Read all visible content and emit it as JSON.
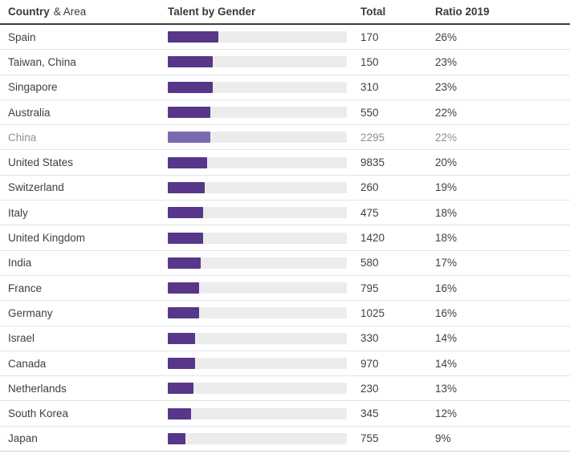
{
  "colors": {
    "bar_fill": "#563789",
    "bar_fill_highlight": "#7a69ae",
    "bar_track": "#ececec",
    "text": "#3f3f3f",
    "text_muted": "#8f8f8f",
    "header_rule": "#3c3c3c",
    "row_rule": "#e4e4e4"
  },
  "header": {
    "country_bold": "Country",
    "country_regular": "& Area",
    "talent": "Talent by Gender",
    "total": "Total",
    "ratio": "Ratio 2019"
  },
  "rows": [
    {
      "country": "Spain",
      "total": "170",
      "ratio": "26%",
      "ratio_value": 26,
      "muted": false
    },
    {
      "country": "Taiwan, China",
      "total": "150",
      "ratio": "23%",
      "ratio_value": 23,
      "muted": false
    },
    {
      "country": "Singapore",
      "total": "310",
      "ratio": "23%",
      "ratio_value": 23,
      "muted": false
    },
    {
      "country": "Australia",
      "total": "550",
      "ratio": "22%",
      "ratio_value": 22,
      "muted": false
    },
    {
      "country": "China",
      "total": "2295",
      "ratio": "22%",
      "ratio_value": 22,
      "muted": true
    },
    {
      "country": "United States",
      "total": "9835",
      "ratio": "20%",
      "ratio_value": 20,
      "muted": false
    },
    {
      "country": "Switzerland",
      "total": "260",
      "ratio": "19%",
      "ratio_value": 19,
      "muted": false
    },
    {
      "country": "Italy",
      "total": "475",
      "ratio": "18%",
      "ratio_value": 18,
      "muted": false
    },
    {
      "country": "United Kingdom",
      "total": "1420",
      "ratio": "18%",
      "ratio_value": 18,
      "muted": false
    },
    {
      "country": "India",
      "total": "580",
      "ratio": "17%",
      "ratio_value": 17,
      "muted": false
    },
    {
      "country": "France",
      "total": "795",
      "ratio": "16%",
      "ratio_value": 16,
      "muted": false
    },
    {
      "country": "Germany",
      "total": "1025",
      "ratio": "16%",
      "ratio_value": 16,
      "muted": false
    },
    {
      "country": "Israel",
      "total": "330",
      "ratio": "14%",
      "ratio_value": 14,
      "muted": false
    },
    {
      "country": "Canada",
      "total": "970",
      "ratio": "14%",
      "ratio_value": 14,
      "muted": false
    },
    {
      "country": "Netherlands",
      "total": "230",
      "ratio": "13%",
      "ratio_value": 13,
      "muted": false
    },
    {
      "country": "South Korea",
      "total": "345",
      "ratio": "12%",
      "ratio_value": 12,
      "muted": false
    },
    {
      "country": "Japan",
      "total": "755",
      "ratio": "9%",
      "ratio_value": 9,
      "muted": false
    }
  ],
  "chart_data": {
    "type": "bar",
    "title": "Talent by Gender",
    "categories": [
      "Spain",
      "Taiwan, China",
      "Singapore",
      "Australia",
      "China",
      "United States",
      "Switzerland",
      "Italy",
      "United Kingdom",
      "India",
      "France",
      "Germany",
      "Israel",
      "Canada",
      "Netherlands",
      "South Korea",
      "Japan"
    ],
    "series": [
      {
        "name": "Total",
        "values": [
          170,
          150,
          310,
          550,
          2295,
          9835,
          260,
          475,
          1420,
          580,
          795,
          1025,
          330,
          970,
          230,
          345,
          755
        ]
      },
      {
        "name": "Ratio 2019 (%)",
        "values": [
          26,
          23,
          23,
          22,
          22,
          20,
          19,
          18,
          18,
          17,
          16,
          16,
          14,
          14,
          13,
          12,
          9
        ]
      }
    ],
    "bar_encodes": "Ratio 2019 (%)",
    "orientation": "horizontal",
    "xlim": [
      0,
      100
    ],
    "highlighted_category": "China",
    "legend": false,
    "grid": false,
    "column_headers": [
      "Country & Area",
      "Talent by Gender",
      "Total",
      "Ratio 2019"
    ]
  }
}
